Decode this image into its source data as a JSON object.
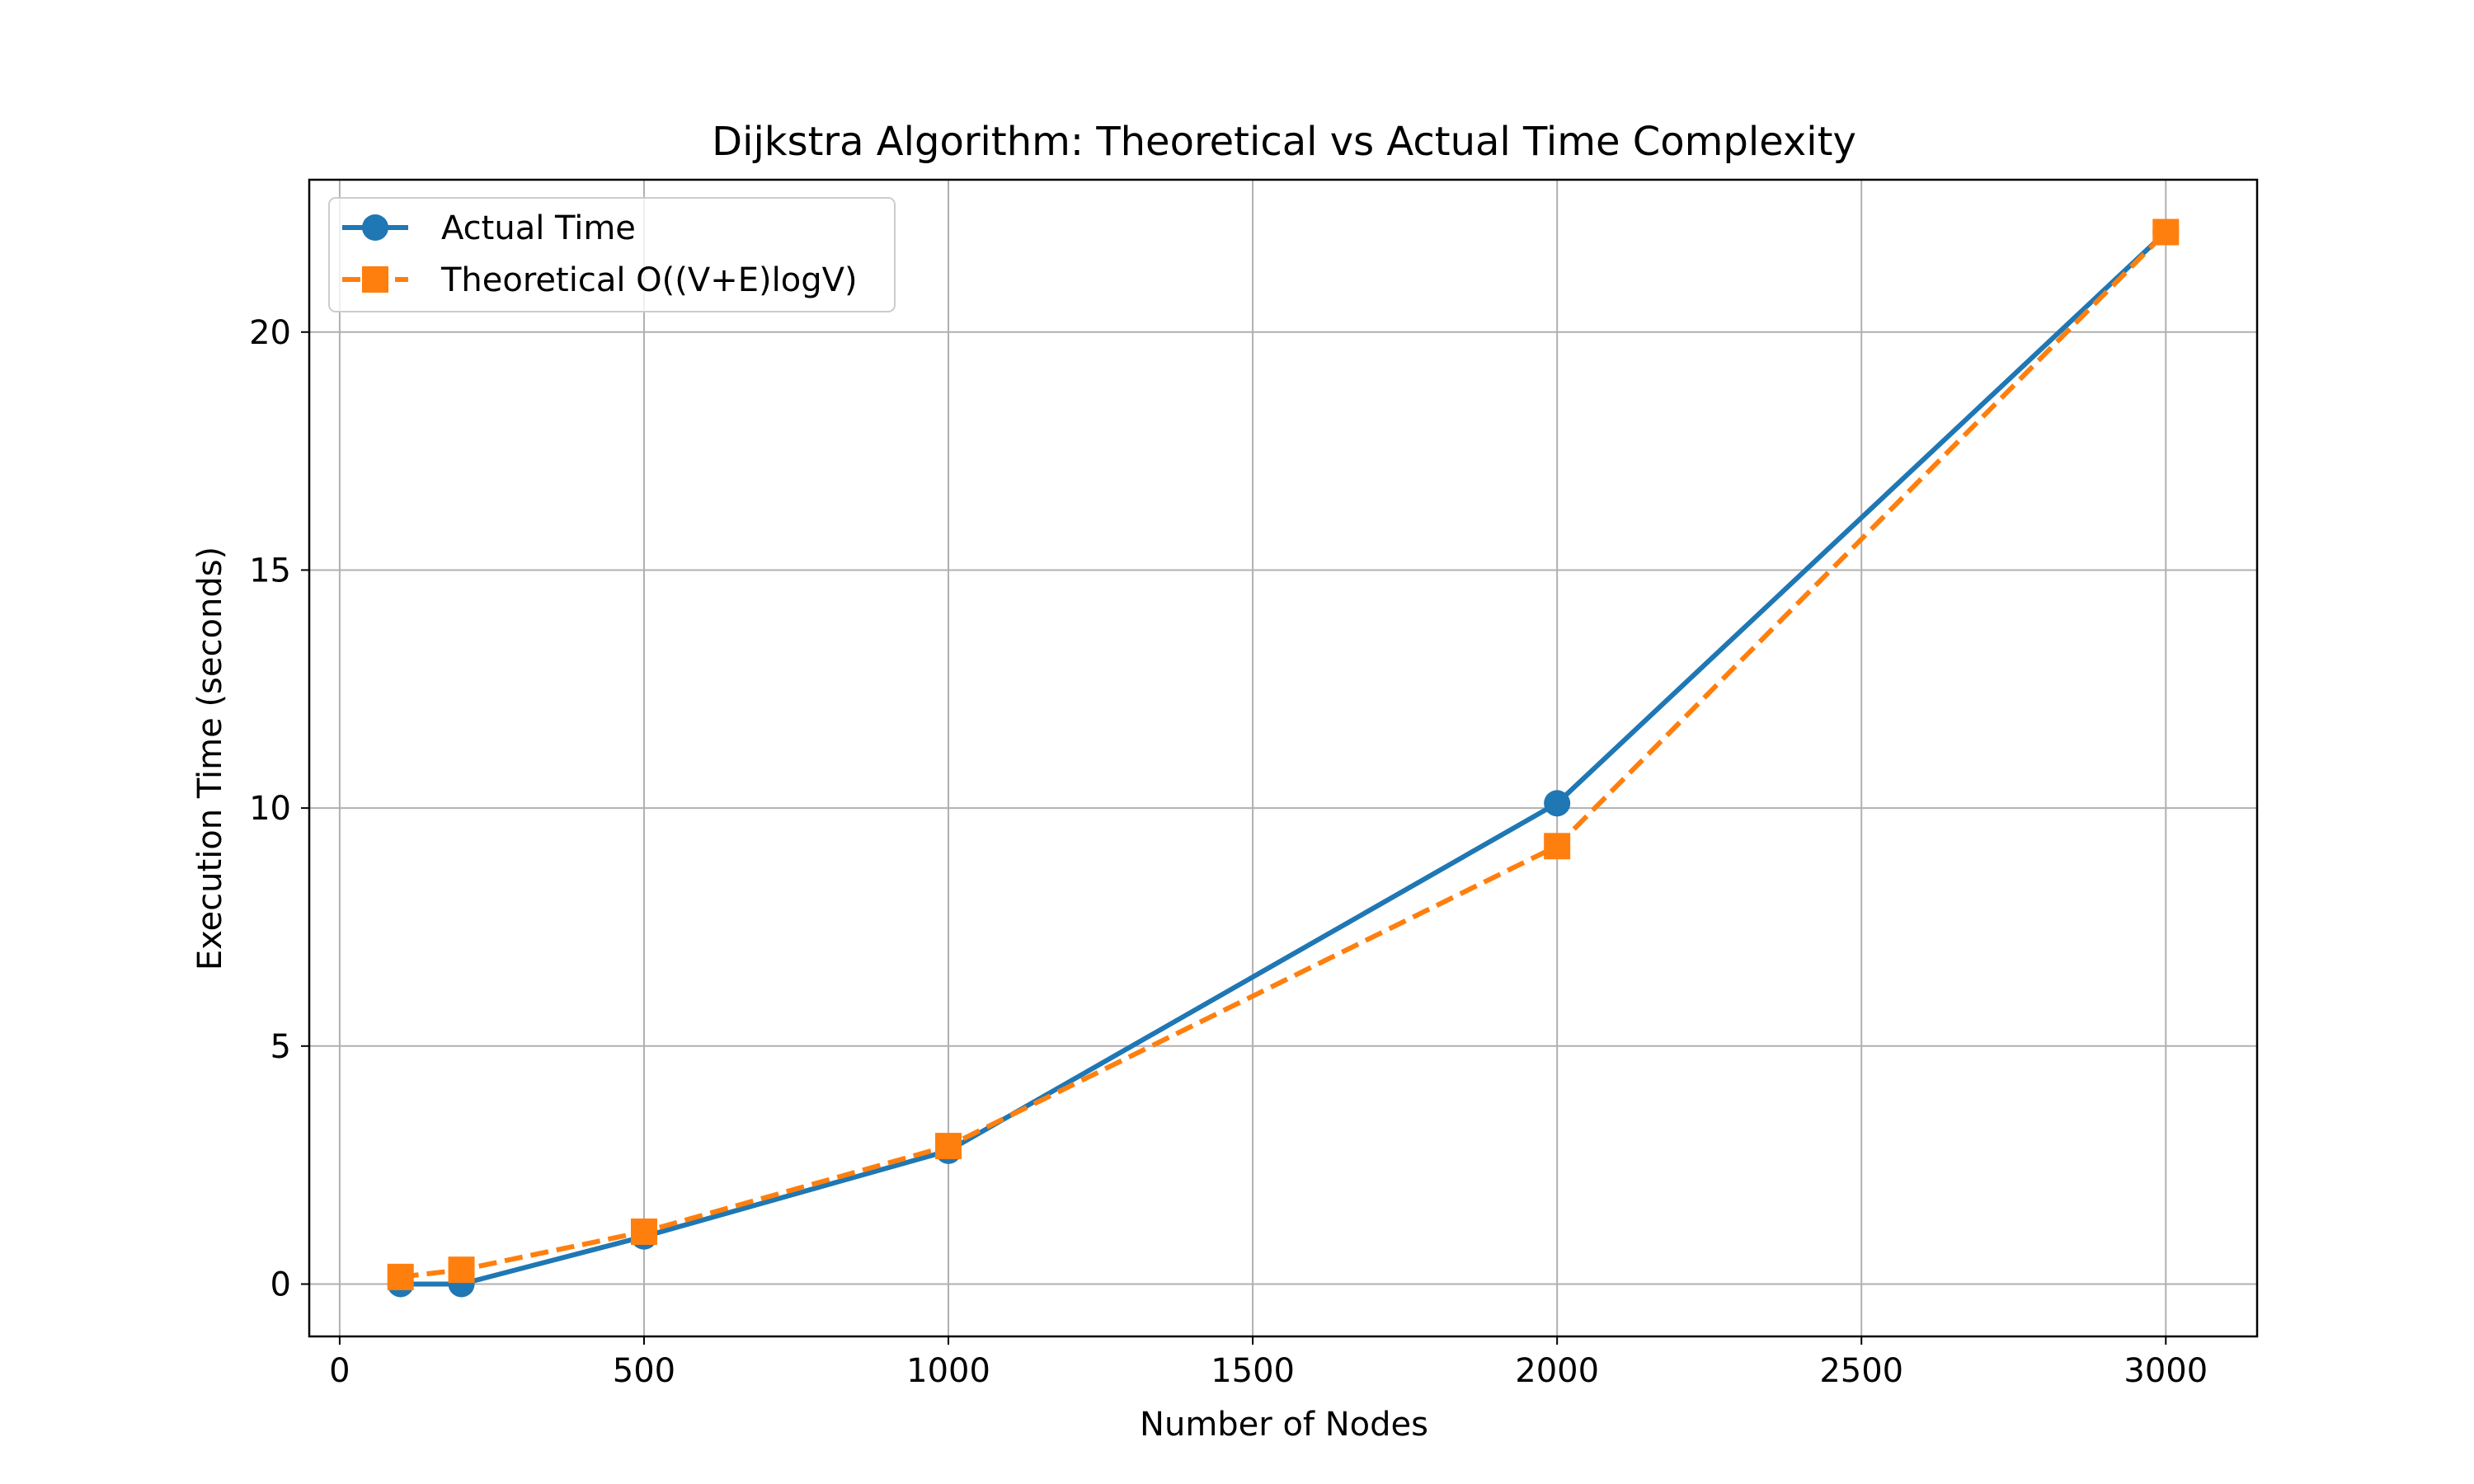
{
  "chart_data": {
    "type": "line",
    "title": "Dijkstra Algorithm: Theoretical vs Actual Time Complexity",
    "xlabel": "Number of Nodes",
    "ylabel": "Execution Time (seconds)",
    "xlim": [
      -50,
      3150
    ],
    "ylim": [
      -1.1,
      23.2
    ],
    "xticks": [
      0,
      500,
      1000,
      1500,
      2000,
      2500,
      3000
    ],
    "yticks": [
      0,
      5,
      10,
      15,
      20
    ],
    "grid": true,
    "legend_position": "top-left",
    "series": [
      {
        "name": "Actual Time",
        "color": "#1f77b4",
        "line_style": "solid",
        "marker": "circle",
        "x": [
          100,
          200,
          500,
          1000,
          2000,
          3000
        ],
        "y": [
          0.0,
          0.0,
          1.0,
          2.8,
          10.1,
          22.1
        ]
      },
      {
        "name": "Theoretical O((V+E)logV)",
        "color": "#ff7f0e",
        "line_style": "dashed",
        "marker": "square",
        "x": [
          100,
          200,
          500,
          1000,
          2000,
          3000
        ],
        "y": [
          0.15,
          0.3,
          1.1,
          2.9,
          9.2,
          22.1
        ]
      }
    ]
  }
}
